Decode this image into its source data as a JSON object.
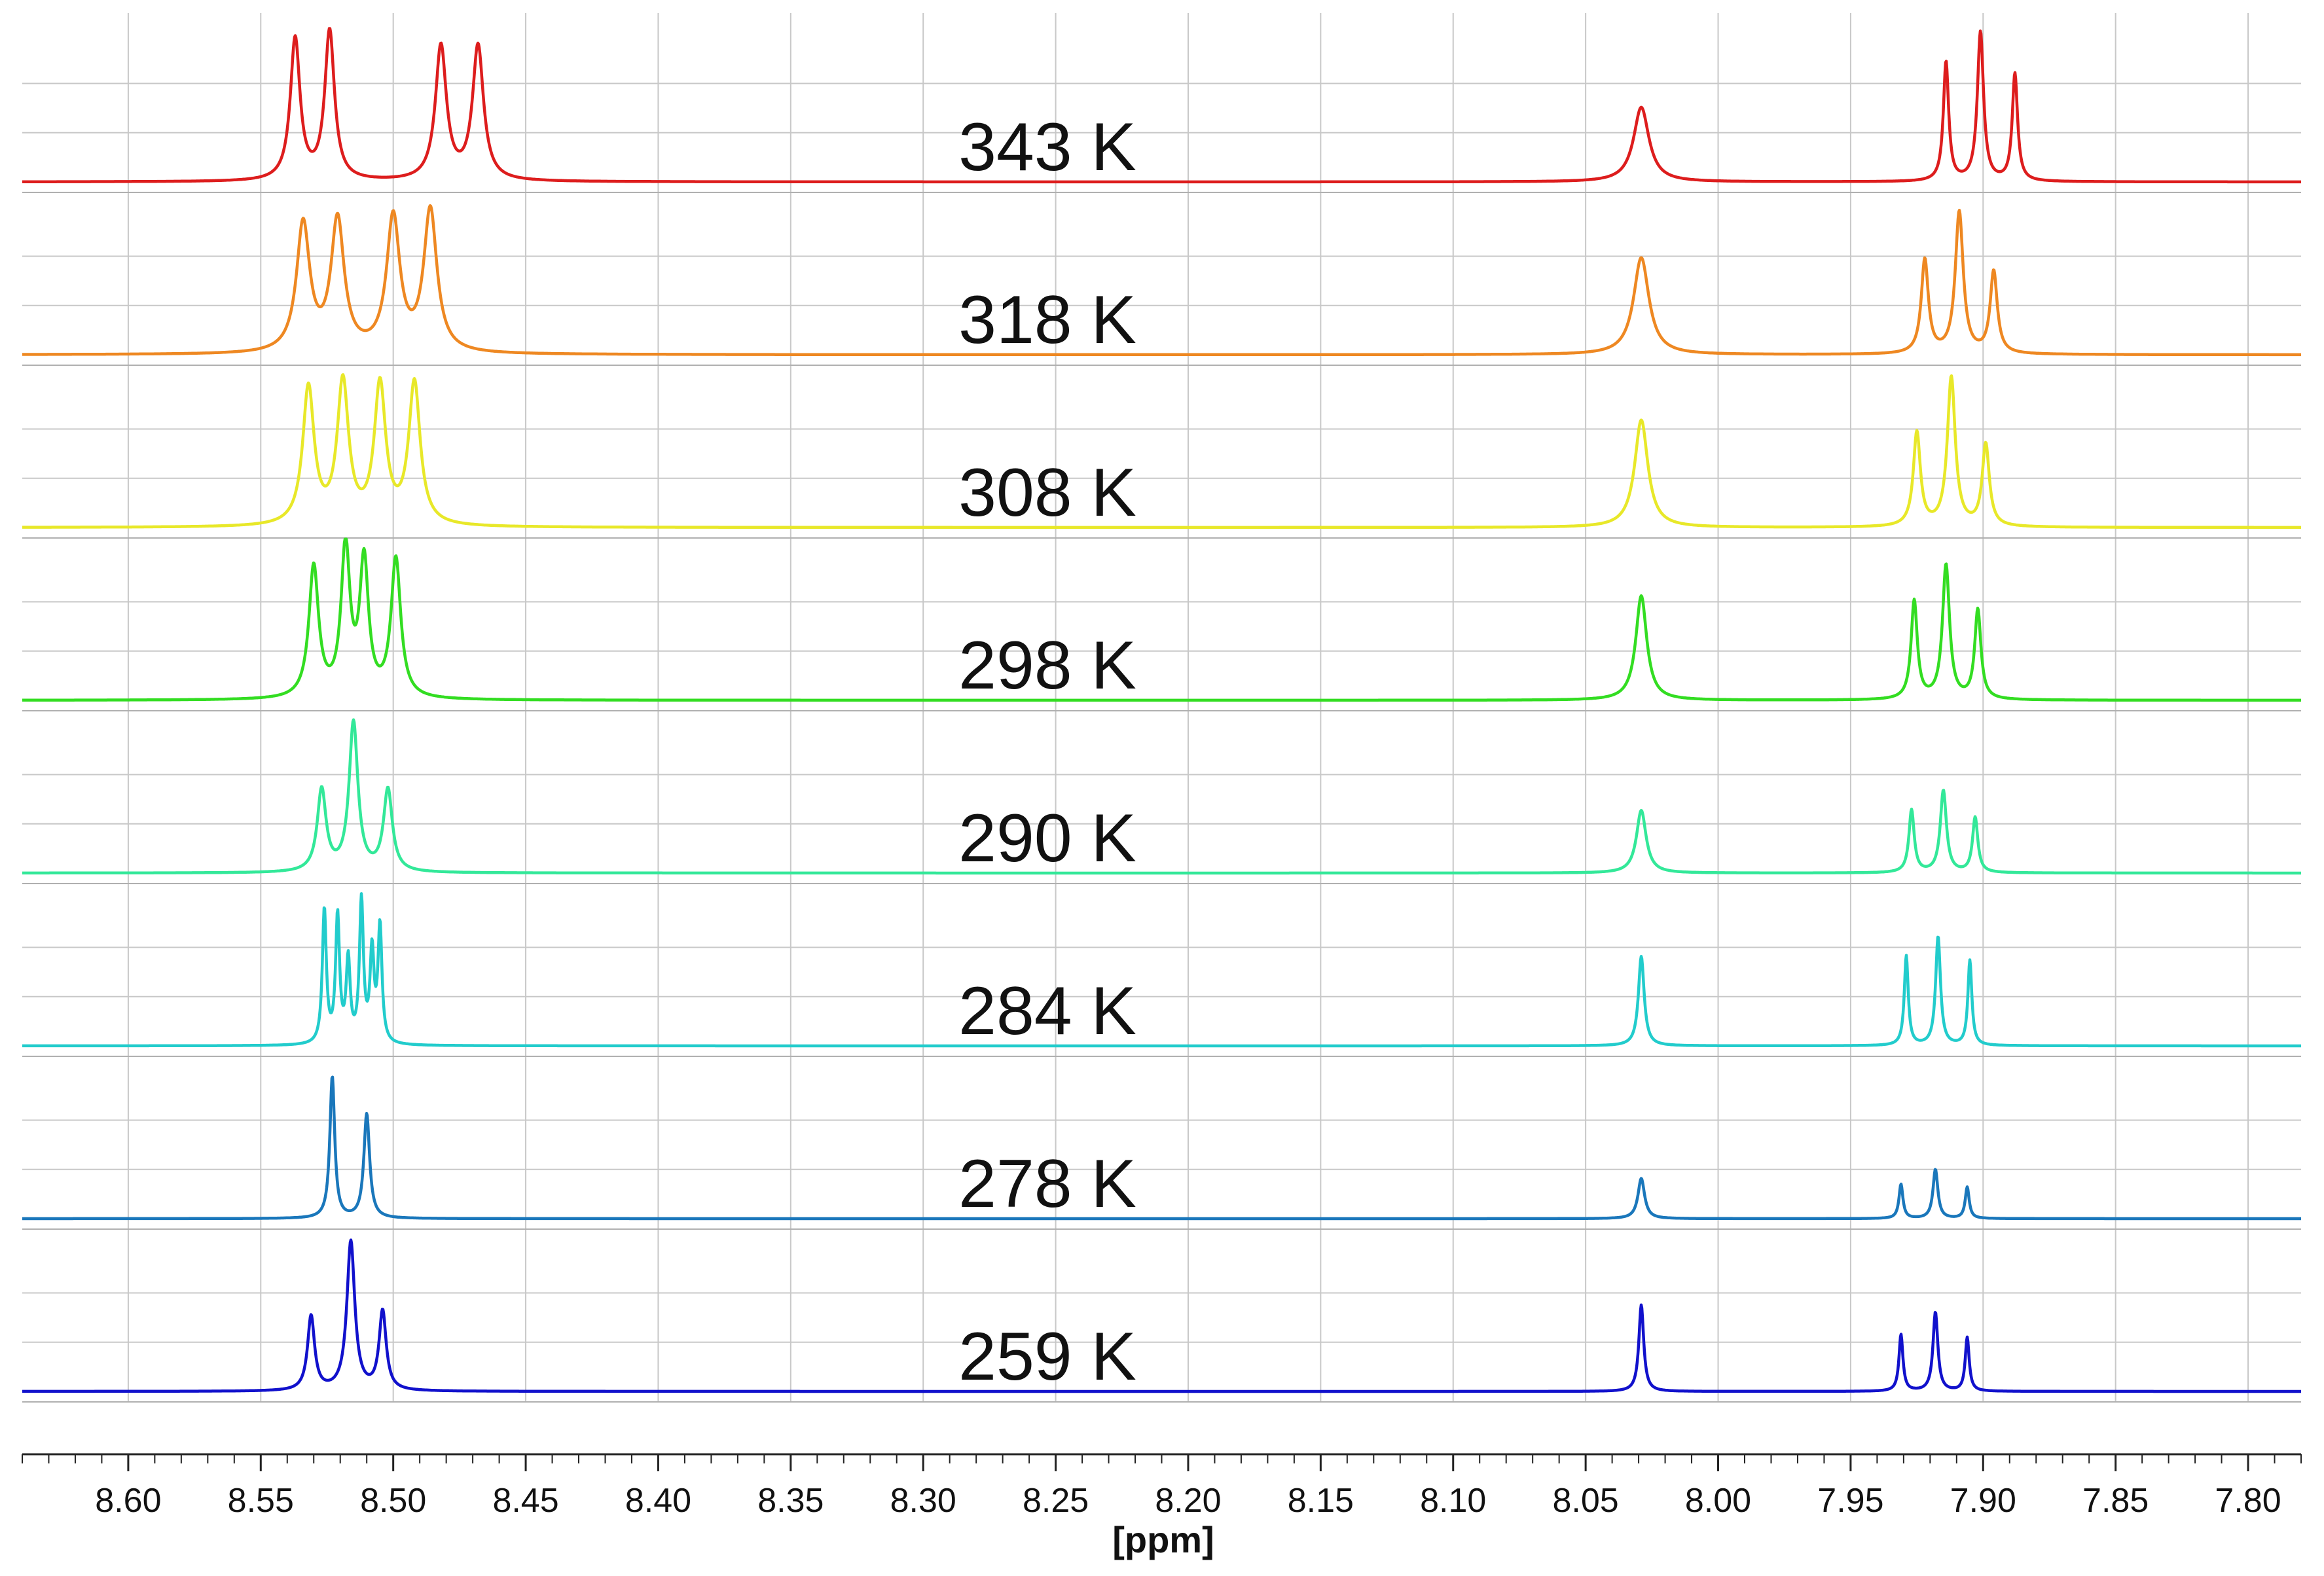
{
  "chart_data": {
    "type": "line",
    "title": "",
    "xlabel": "[ppm]",
    "ylabel": "",
    "x_reversed": true,
    "xlim": [
      8.64,
      7.78
    ],
    "x_ticks": [
      8.6,
      8.55,
      8.5,
      8.45,
      8.4,
      8.35,
      8.3,
      8.25,
      8.2,
      8.15,
      8.1,
      8.05,
      8.0,
      7.95,
      7.9,
      7.85,
      7.8
    ],
    "x_tick_labels": [
      "8.60",
      "8.55",
      "8.50",
      "8.45",
      "8.40",
      "8.35",
      "8.30",
      "8.25",
      "8.20",
      "8.15",
      "8.10",
      "8.05",
      "8.00",
      "7.95",
      "7.90",
      "7.85",
      "7.80"
    ],
    "minor_tick_step": 0.01,
    "grid": true,
    "series": [
      {
        "name": "343 K",
        "label": "343 K",
        "color": "#dd1d1d",
        "peaks": [
          {
            "ppm": 8.537,
            "height": 0.95,
            "width": 0.0022
          },
          {
            "ppm": 8.524,
            "height": 1.0,
            "width": 0.0022
          },
          {
            "ppm": 8.482,
            "height": 0.9,
            "width": 0.0025
          },
          {
            "ppm": 8.468,
            "height": 0.9,
            "width": 0.0025
          },
          {
            "ppm": 8.029,
            "height": 0.5,
            "width": 0.0035
          },
          {
            "ppm": 7.914,
            "height": 0.8,
            "width": 0.0012
          },
          {
            "ppm": 7.901,
            "height": 1.0,
            "width": 0.0014
          },
          {
            "ppm": 7.888,
            "height": 0.72,
            "width": 0.0012
          }
        ]
      },
      {
        "name": "318 K",
        "label": "318 K",
        "color": "#ee8822",
        "peaks": [
          {
            "ppm": 8.534,
            "height": 0.86,
            "width": 0.003
          },
          {
            "ppm": 8.521,
            "height": 0.88,
            "width": 0.003
          },
          {
            "ppm": 8.5,
            "height": 0.9,
            "width": 0.003
          },
          {
            "ppm": 8.486,
            "height": 0.95,
            "width": 0.003
          },
          {
            "ppm": 8.029,
            "height": 0.65,
            "width": 0.0035
          },
          {
            "ppm": 7.922,
            "height": 0.63,
            "width": 0.0016
          },
          {
            "ppm": 7.909,
            "height": 0.95,
            "width": 0.0018
          },
          {
            "ppm": 7.896,
            "height": 0.55,
            "width": 0.0016
          }
        ]
      },
      {
        "name": "308 K",
        "label": "308 K",
        "color": "#e8e829",
        "peaks": [
          {
            "ppm": 8.532,
            "height": 0.92,
            "width": 0.0026
          },
          {
            "ppm": 8.519,
            "height": 0.95,
            "width": 0.0026
          },
          {
            "ppm": 8.505,
            "height": 0.93,
            "width": 0.0026
          },
          {
            "ppm": 8.492,
            "height": 0.95,
            "width": 0.0026
          },
          {
            "ppm": 8.029,
            "height": 0.72,
            "width": 0.003
          },
          {
            "ppm": 7.925,
            "height": 0.63,
            "width": 0.0016
          },
          {
            "ppm": 7.912,
            "height": 1.0,
            "width": 0.0018
          },
          {
            "ppm": 7.899,
            "height": 0.55,
            "width": 0.0016
          }
        ]
      },
      {
        "name": "298 K",
        "label": "298 K",
        "color": "#33dd22",
        "peaks": [
          {
            "ppm": 8.53,
            "height": 0.88,
            "width": 0.0022
          },
          {
            "ppm": 8.518,
            "height": 1.0,
            "width": 0.002
          },
          {
            "ppm": 8.511,
            "height": 0.9,
            "width": 0.002
          },
          {
            "ppm": 8.499,
            "height": 0.93,
            "width": 0.0022
          },
          {
            "ppm": 8.029,
            "height": 0.7,
            "width": 0.0025
          },
          {
            "ppm": 7.926,
            "height": 0.66,
            "width": 0.0014
          },
          {
            "ppm": 7.914,
            "height": 0.9,
            "width": 0.0016
          },
          {
            "ppm": 7.902,
            "height": 0.6,
            "width": 0.0014
          }
        ]
      },
      {
        "name": "290 K",
        "label": "290 K",
        "color": "#33e899",
        "peaks": [
          {
            "ppm": 8.527,
            "height": 0.55,
            "width": 0.002
          },
          {
            "ppm": 8.515,
            "height": 1.0,
            "width": 0.002
          },
          {
            "ppm": 8.502,
            "height": 0.55,
            "width": 0.002
          },
          {
            "ppm": 8.029,
            "height": 0.42,
            "width": 0.0022
          },
          {
            "ppm": 7.927,
            "height": 0.42,
            "width": 0.0012
          },
          {
            "ppm": 7.915,
            "height": 0.55,
            "width": 0.0014
          },
          {
            "ppm": 7.903,
            "height": 0.37,
            "width": 0.0012
          }
        ]
      },
      {
        "name": "284 K",
        "label": "284 K",
        "color": "#22cccc",
        "peaks": [
          {
            "ppm": 8.526,
            "height": 0.9,
            "width": 0.0009
          },
          {
            "ppm": 8.521,
            "height": 0.85,
            "width": 0.0009
          },
          {
            "ppm": 8.517,
            "height": 0.55,
            "width": 0.0009
          },
          {
            "ppm": 8.512,
            "height": 0.95,
            "width": 0.0009
          },
          {
            "ppm": 8.508,
            "height": 0.6,
            "width": 0.0009
          },
          {
            "ppm": 8.505,
            "height": 0.78,
            "width": 0.0009
          },
          {
            "ppm": 8.029,
            "height": 0.6,
            "width": 0.0013
          },
          {
            "ppm": 7.929,
            "height": 0.6,
            "width": 0.0009
          },
          {
            "ppm": 7.917,
            "height": 0.73,
            "width": 0.0011
          },
          {
            "ppm": 7.905,
            "height": 0.57,
            "width": 0.0009
          }
        ]
      },
      {
        "name": "278 K",
        "label": "278 K",
        "color": "#1a77bb",
        "peaks": [
          {
            "ppm": 8.523,
            "height": 0.95,
            "width": 0.0011
          },
          {
            "ppm": 8.51,
            "height": 0.7,
            "width": 0.0013
          },
          {
            "ppm": 8.029,
            "height": 0.27,
            "width": 0.0015
          },
          {
            "ppm": 7.931,
            "height": 0.23,
            "width": 0.0009
          },
          {
            "ppm": 7.918,
            "height": 0.33,
            "width": 0.0011
          },
          {
            "ppm": 7.906,
            "height": 0.21,
            "width": 0.0009
          }
        ]
      },
      {
        "name": "259 K",
        "label": "259 K",
        "color": "#1111cc",
        "peaks": [
          {
            "ppm": 8.531,
            "height": 0.5,
            "width": 0.0016
          },
          {
            "ppm": 8.516,
            "height": 1.0,
            "width": 0.0018
          },
          {
            "ppm": 8.504,
            "height": 0.53,
            "width": 0.0016
          },
          {
            "ppm": 8.029,
            "height": 0.58,
            "width": 0.0011
          },
          {
            "ppm": 7.931,
            "height": 0.38,
            "width": 0.0009
          },
          {
            "ppm": 7.918,
            "height": 0.53,
            "width": 0.0011
          },
          {
            "ppm": 7.906,
            "height": 0.36,
            "width": 0.0009
          }
        ]
      }
    ]
  }
}
